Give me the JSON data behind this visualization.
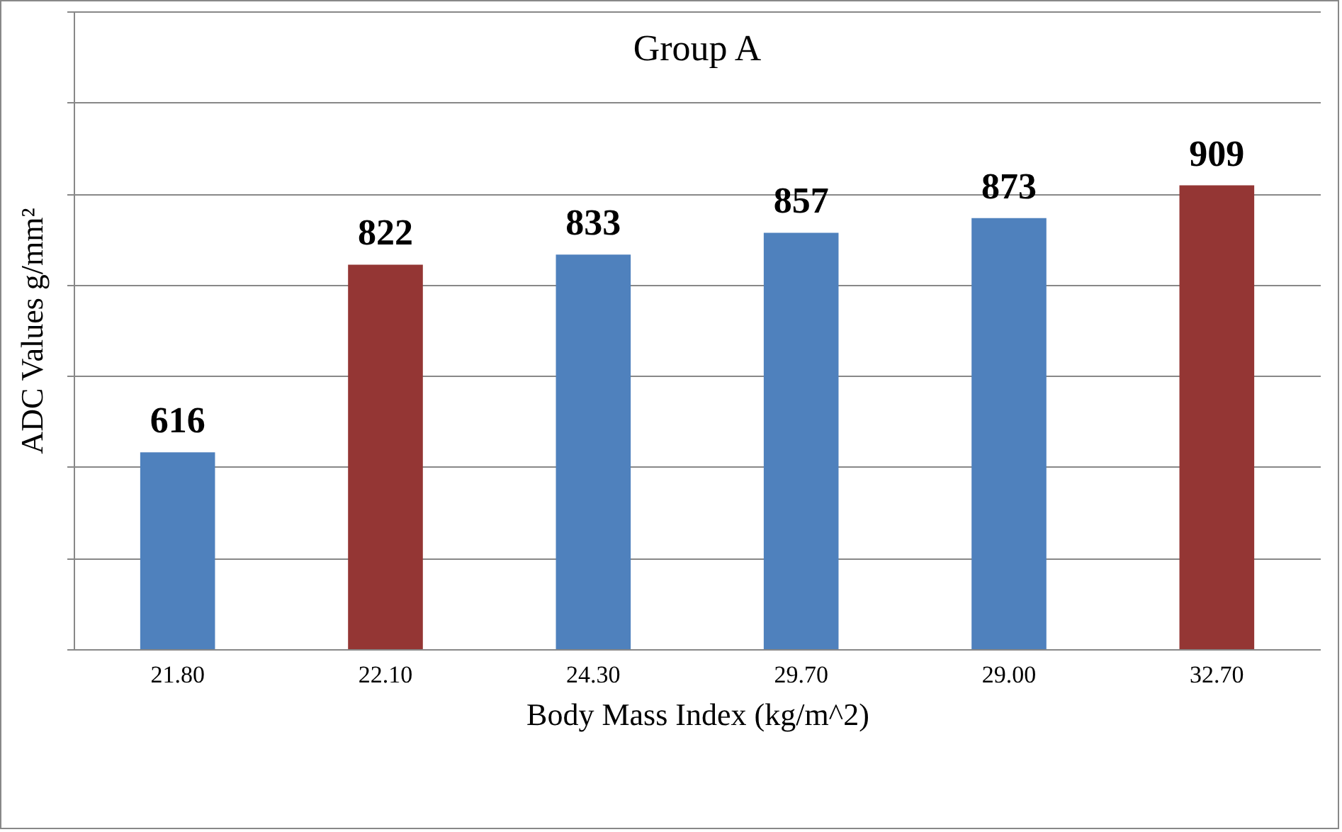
{
  "chart_data": {
    "type": "bar",
    "title": "Group A",
    "xlabel": "Body Mass Index (kg/m^2)",
    "ylabel": "ADC Values g/mm²",
    "categories": [
      "21.80",
      "22.10",
      "24.30",
      "29.70",
      "29.00",
      "32.70"
    ],
    "values": [
      616,
      822,
      833,
      857,
      873,
      909
    ],
    "colors": [
      "#4f81bd",
      "#943634",
      "#4f81bd",
      "#4f81bd",
      "#4f81bd",
      "#943634"
    ],
    "ylim": [
      400,
      1100
    ],
    "tick_labels": "x",
    "grid": "y",
    "data_labels": true
  }
}
